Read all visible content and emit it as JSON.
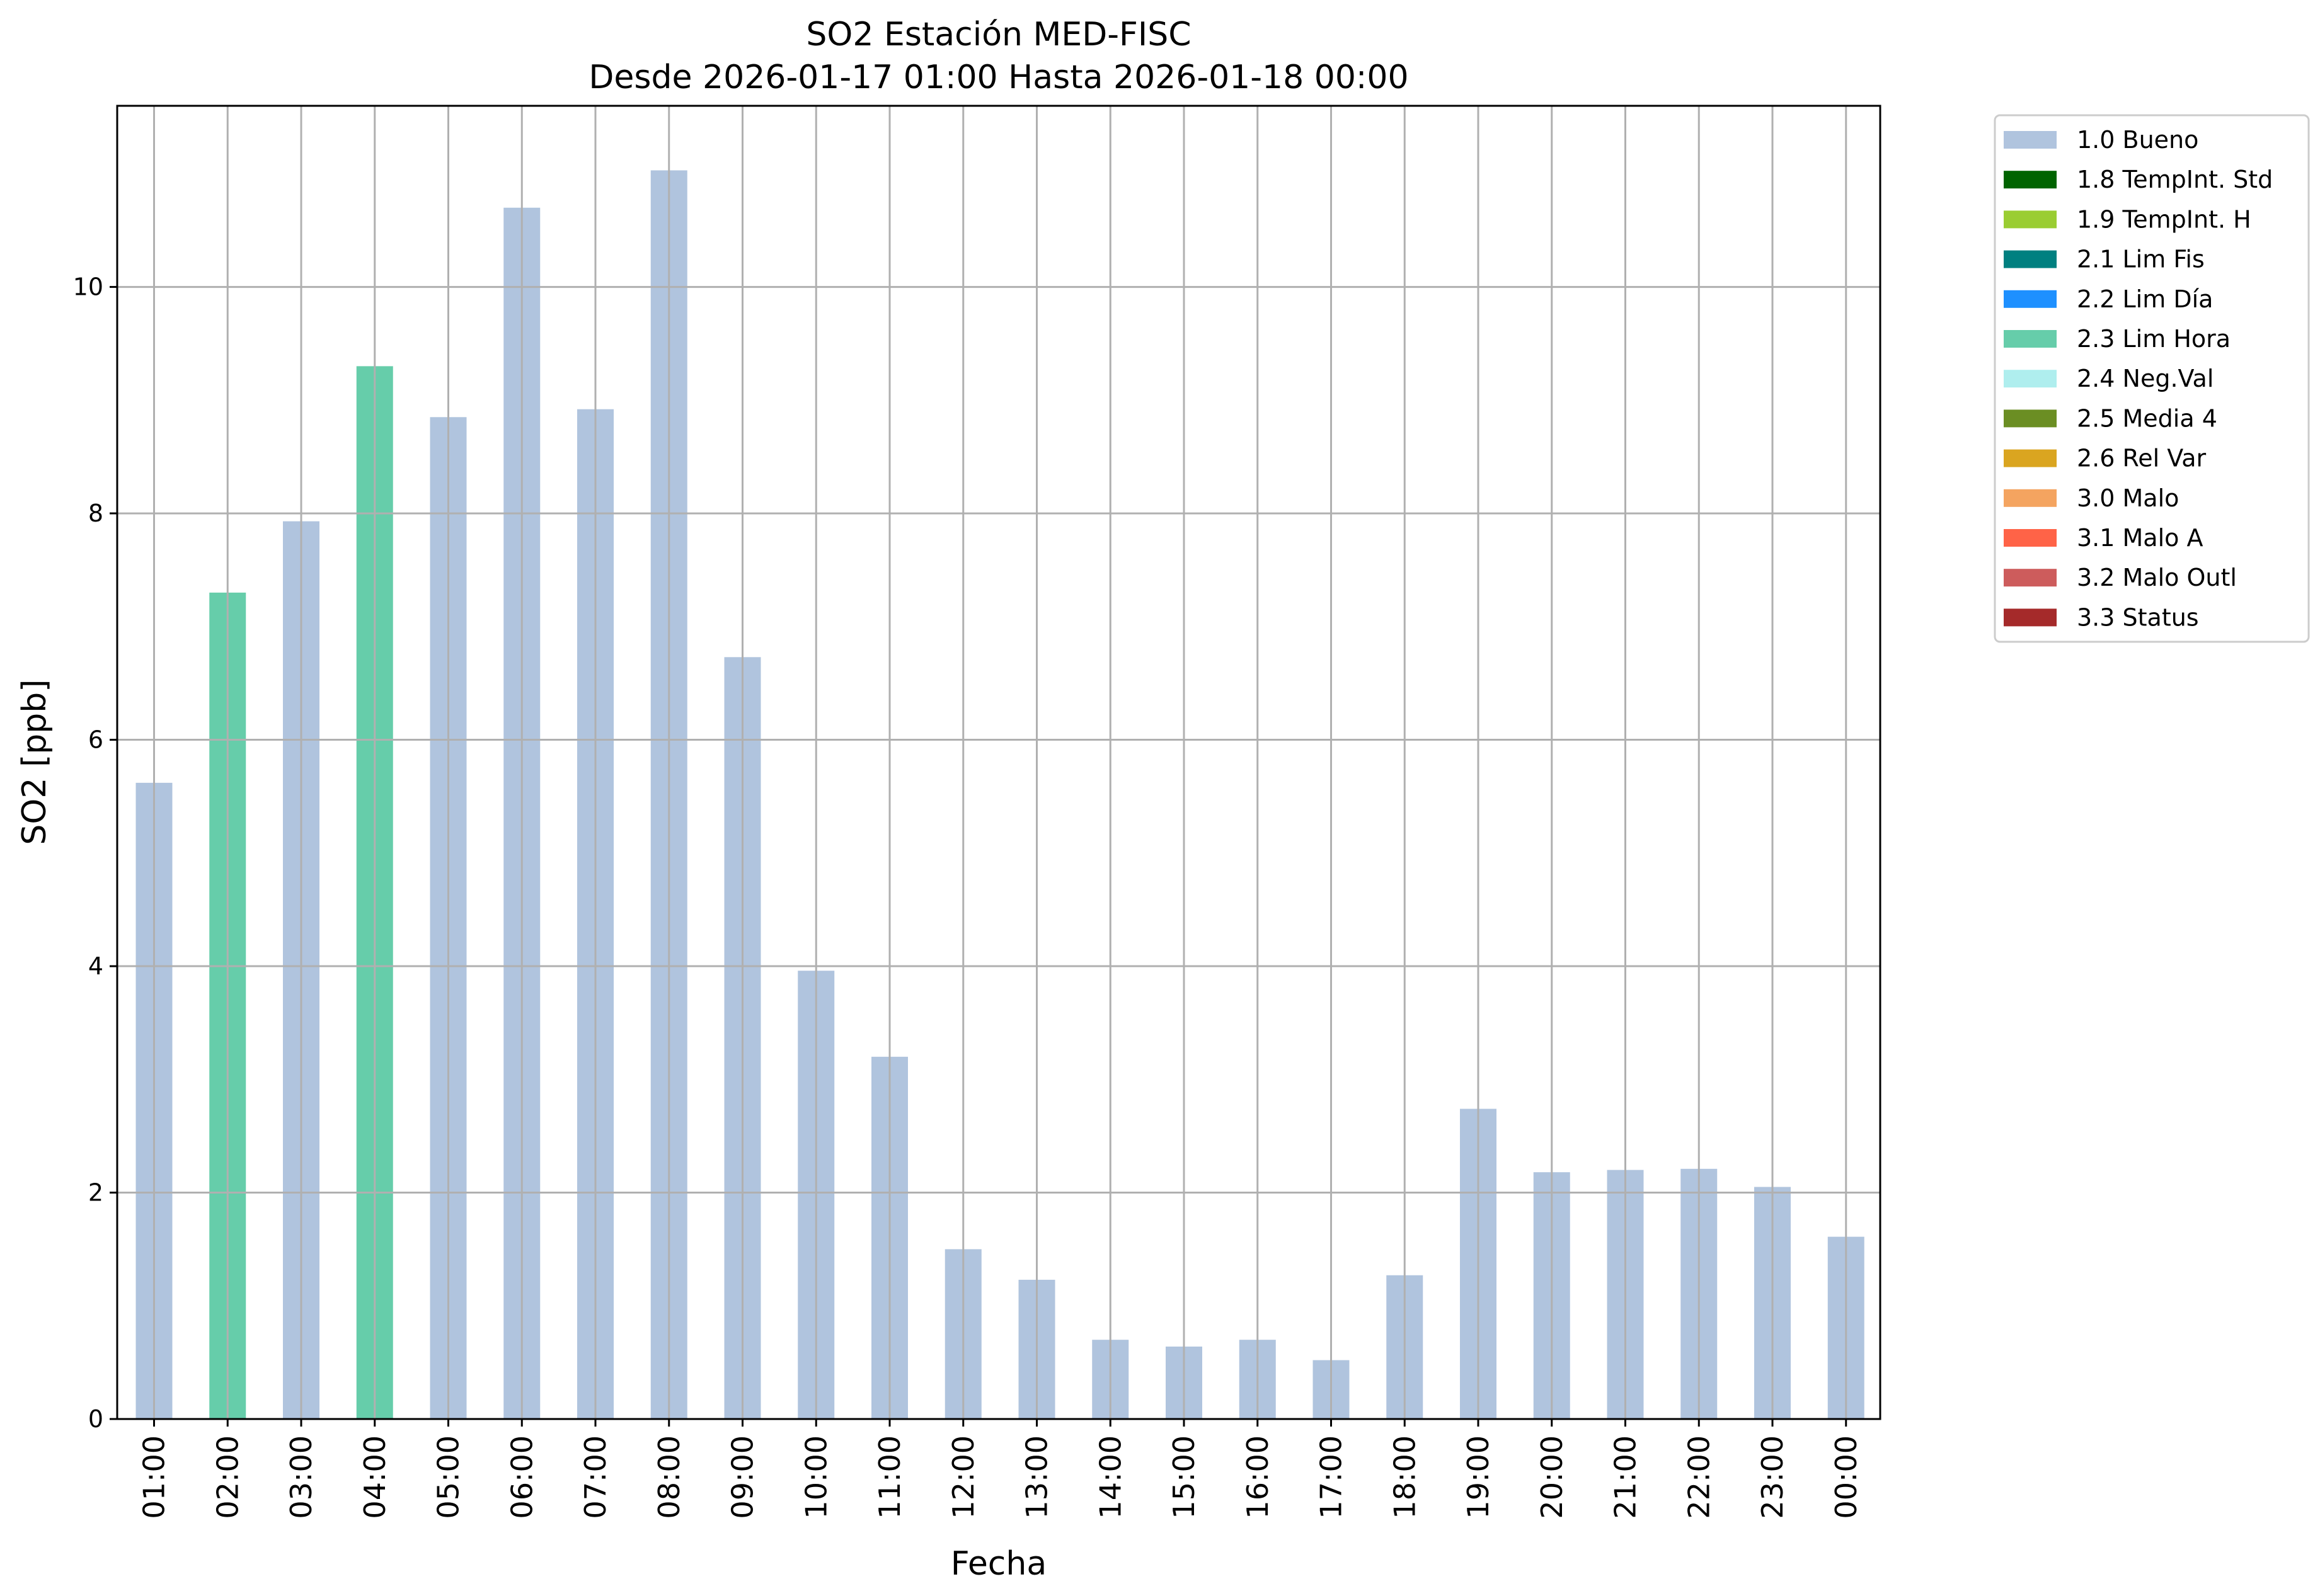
{
  "chart_data": {
    "type": "bar",
    "title": "SO2 Estación MED-FISC",
    "subtitle": "Desde 2026-01-17 01:00 Hasta 2026-01-18 00:00",
    "xlabel": "Fecha",
    "ylabel": "SO2 [ppb]",
    "ylim": [
      0,
      11.6
    ],
    "yticks": [
      0,
      2,
      4,
      6,
      8,
      10
    ],
    "grid": true,
    "legend_position": "outside-top-right",
    "categories": [
      "01:00",
      "02:00",
      "03:00",
      "04:00",
      "05:00",
      "06:00",
      "07:00",
      "08:00",
      "09:00",
      "10:00",
      "11:00",
      "12:00",
      "13:00",
      "14:00",
      "15:00",
      "16:00",
      "17:00",
      "18:00",
      "19:00",
      "20:00",
      "21:00",
      "22:00",
      "23:00",
      "00:00"
    ],
    "values": [
      5.62,
      7.3,
      7.93,
      9.3,
      8.85,
      10.7,
      8.92,
      11.03,
      6.73,
      3.96,
      3.2,
      1.5,
      1.23,
      0.7,
      0.64,
      0.7,
      0.52,
      1.27,
      2.74,
      2.18,
      2.2,
      2.21,
      2.05,
      1.61
    ],
    "flags": [
      "1.0 Bueno",
      "2.3 Lim Hora",
      "1.0 Bueno",
      "2.3 Lim Hora",
      "1.0 Bueno",
      "1.0 Bueno",
      "1.0 Bueno",
      "1.0 Bueno",
      "1.0 Bueno",
      "1.0 Bueno",
      "1.0 Bueno",
      "1.0 Bueno",
      "1.0 Bueno",
      "1.0 Bueno",
      "1.0 Bueno",
      "1.0 Bueno",
      "1.0 Bueno",
      "1.0 Bueno",
      "1.0 Bueno",
      "1.0 Bueno",
      "1.0 Bueno",
      "1.0 Bueno",
      "1.0 Bueno",
      "1.0 Bueno"
    ],
    "legend": [
      {
        "label": "1.0 Bueno",
        "color": "#b0c4de"
      },
      {
        "label": "1.8 TempInt. Std",
        "color": "#006400"
      },
      {
        "label": "1.9 TempInt. H",
        "color": "#9acd32"
      },
      {
        "label": "2.1 Lim Fis",
        "color": "#008080"
      },
      {
        "label": "2.2 Lim Día",
        "color": "#1e90ff"
      },
      {
        "label": "2.3 Lim Hora",
        "color": "#66cdaa"
      },
      {
        "label": "2.4 Neg.Val",
        "color": "#afeeee"
      },
      {
        "label": "2.5 Media 4",
        "color": "#6b8e23"
      },
      {
        "label": "2.6 Rel Var",
        "color": "#daa520"
      },
      {
        "label": "3.0 Malo",
        "color": "#f4a460"
      },
      {
        "label": "3.1 Malo A",
        "color": "#ff6347"
      },
      {
        "label": "3.2 Malo Outl",
        "color": "#cd5c5c"
      },
      {
        "label": "3.3 Status",
        "color": "#a52a2a"
      }
    ]
  }
}
